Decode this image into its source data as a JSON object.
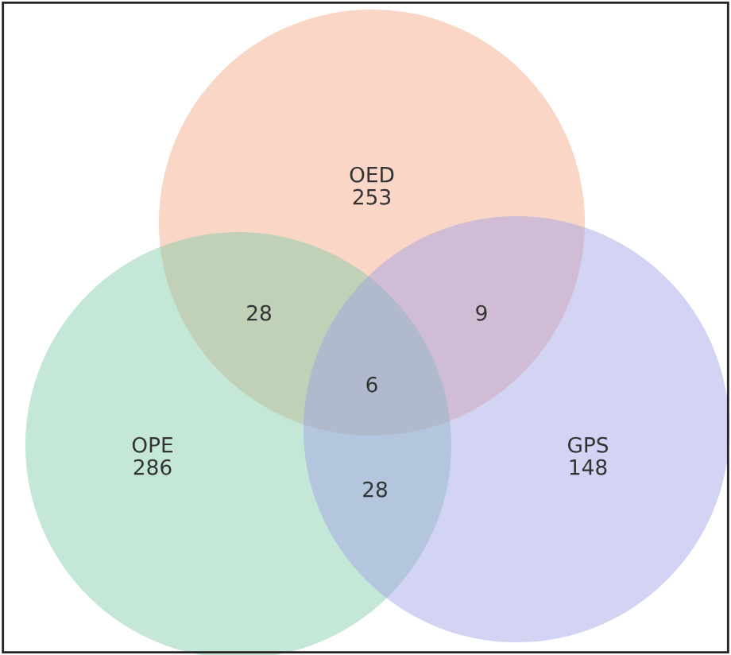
{
  "chart_data": {
    "type": "other",
    "categories": [
      "OED",
      "OPE",
      "GPS"
    ],
    "values": [
      253,
      286,
      148
    ],
    "colors": [
      "#f2a582",
      "#7fcca8",
      "#9f9fe8"
    ],
    "data_labels": true,
    "annotations": [
      "28",
      "9",
      "28",
      "6"
    ]
  }
}
